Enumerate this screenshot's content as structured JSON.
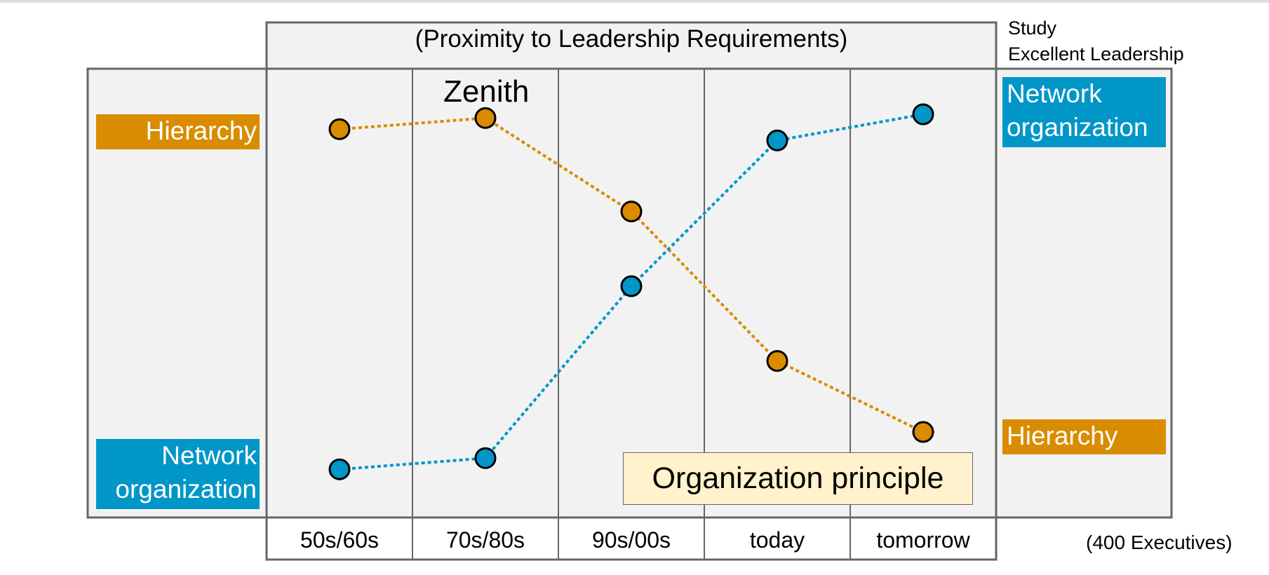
{
  "header": {
    "period_title": "(Proximity to Leadership Requirements)",
    "study_line1": "Study",
    "study_line2": "Excellent Leadership",
    "note": "(400 Executives)"
  },
  "annotations": {
    "zenith": "Zenith",
    "principle": "Organization principle"
  },
  "left_labels": {
    "top": "Hierarchy",
    "bottom_line1": "Network",
    "bottom_line2": "organization"
  },
  "right_labels": {
    "top_line1": "Network",
    "top_line2": "organization",
    "bottom": "Hierarchy"
  },
  "colors": {
    "hierarchy": "#d98c00",
    "network": "#0096c8",
    "panel": "#f2f2f2",
    "grid": "#666666",
    "principle_box": "#fff2cc"
  },
  "chart_data": {
    "type": "line",
    "categories": [
      "50s/60s",
      "70s/80s",
      "90s/00s",
      "today",
      "tomorrow"
    ],
    "series": [
      {
        "name": "Hierarchy",
        "values": [
          93,
          96,
          71,
          31,
          12
        ]
      },
      {
        "name": "Network organization",
        "values": [
          2,
          5,
          51,
          90,
          97
        ]
      }
    ],
    "ylim": [
      0,
      100
    ],
    "grid": true,
    "title": "(Proximity to Leadership Requirements)",
    "xlabel": "",
    "ylabel": ""
  }
}
